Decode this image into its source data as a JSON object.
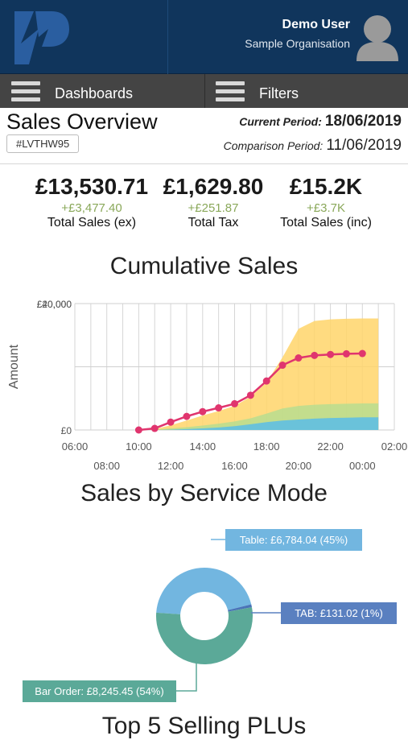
{
  "header": {
    "user_name": "Demo User",
    "organisation": "Sample Organisation",
    "logo_icon": "brand-logo-icon",
    "avatar_icon": "user-avatar-icon",
    "brand_color": "#10355c"
  },
  "nav": {
    "dashboards_label": "Dashboards",
    "filters_label": "Filters"
  },
  "overview": {
    "title": "Sales Overview",
    "code": "#LVTHW95",
    "current_period_label": "Current Period:",
    "current_period_value": "18/06/2019",
    "comparison_period_label": "Comparison Period:",
    "comparison_period_value": "11/06/2019"
  },
  "kpis": [
    {
      "value": "£13,530.71",
      "delta": "+£3,477.40",
      "label": "Total Sales (ex)"
    },
    {
      "value": "£1,629.80",
      "delta": "+£251.87",
      "label": "Total Tax"
    },
    {
      "value": "£15.2K",
      "delta": "+£3.7K",
      "label": "Total Sales (inc)"
    }
  ],
  "positive_delta_color": "#8aa85a",
  "chart_data": [
    {
      "type": "area",
      "title": "Cumulative Sales",
      "ylabel": "Amount",
      "xlabel": "",
      "y_tick_labels": [
        "£0",
        "£20,000",
        "£40,000"
      ],
      "x_tick_labels_upper": [
        "06:00",
        "10:00",
        "14:00",
        "18:00",
        "22:00",
        "02:00"
      ],
      "x_tick_labels_lower": [
        "08:00",
        "12:00",
        "16:00",
        "20:00",
        "00:00"
      ],
      "x": [
        10,
        11,
        12,
        13,
        14,
        15,
        16,
        17,
        18,
        19,
        20,
        21,
        22,
        23,
        24,
        25
      ],
      "ylim": [
        0,
        40000
      ],
      "grid": true,
      "series": [
        {
          "color": "#5bbde8",
          "values": [
            0,
            0,
            100,
            300,
            500,
            800,
            1200,
            1800,
            2500,
            3000,
            3300,
            3600,
            3800,
            3900,
            4000,
            4000
          ]
        },
        {
          "color": "#b9dd8f",
          "values": [
            0,
            100,
            500,
            900,
            1400,
            2000,
            2700,
            3700,
            5200,
            6800,
            7600,
            8000,
            8200,
            8300,
            8400,
            8400
          ]
        },
        {
          "color": "#ffd56a",
          "values": [
            0,
            300,
            1500,
            3000,
            4600,
            6000,
            7600,
            10500,
            15000,
            23000,
            32000,
            34500,
            35000,
            35200,
            35300,
            35300
          ]
        },
        {
          "color": "#e0356e",
          "values": [
            0,
            500,
            2500,
            4300,
            5800,
            7000,
            8300,
            11000,
            15500,
            20500,
            22800,
            23600,
            23900,
            24100,
            24200,
            null
          ]
        }
      ]
    },
    {
      "type": "pie",
      "title": "Sales by Service Mode",
      "donut": true,
      "slices": [
        {
          "label": "Table: £6,784.04 (45%)",
          "value": 45,
          "color": "#72b6e0",
          "label_bg": "#72b6e0"
        },
        {
          "label": "TAB: £131.02 (1%)",
          "value": 1,
          "color": "#4a74b8",
          "label_bg": "#5a80c0"
        },
        {
          "label": "Bar Order: £8,245.45 (54%)",
          "value": 54,
          "color": "#5ba998",
          "label_bg": "#5ba998"
        }
      ]
    }
  ],
  "next_section_title": "Top 5 Selling PLUs"
}
